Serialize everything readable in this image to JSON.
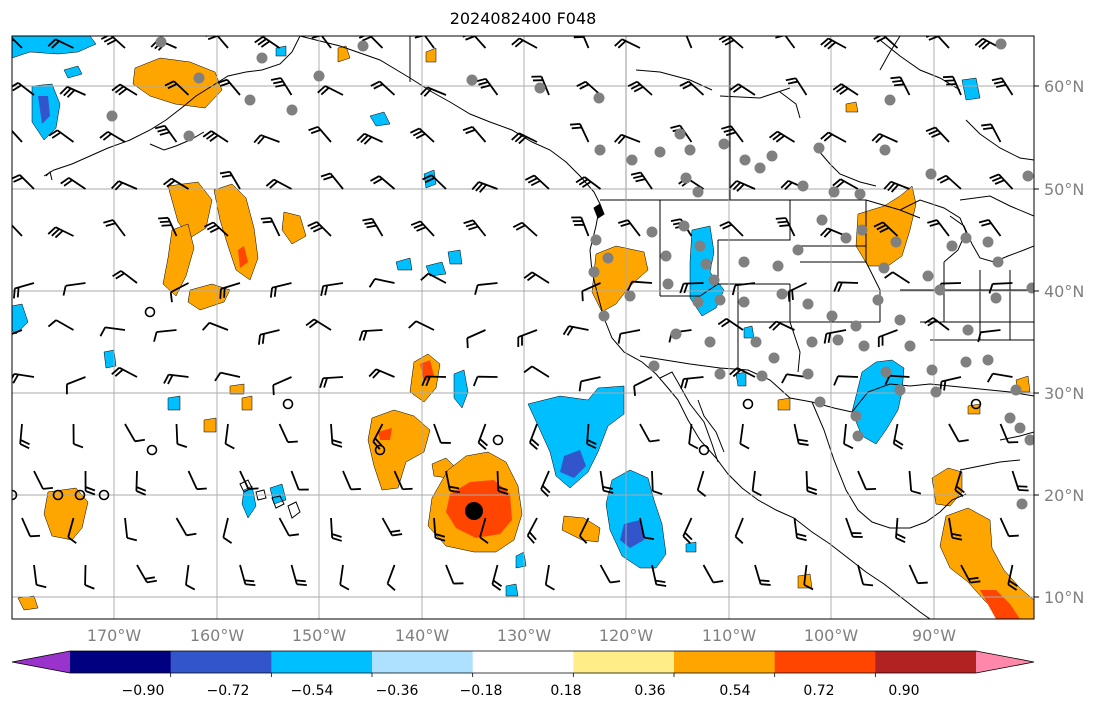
{
  "title": "2024082400 F048",
  "latitude_labels": [
    "60°N",
    "50°N",
    "40°N",
    "30°N",
    "20°N",
    "10°N"
  ],
  "longitude_labels": [
    "170°W",
    "160°W",
    "150°W",
    "140°W",
    "130°W",
    "120°W",
    "110°W",
    "100°W",
    "90°W"
  ],
  "colorbar": {
    "colors": [
      "#9933cc",
      "#000080",
      "#3355cc",
      "#00bfff",
      "#aee0ff",
      "#ffffff",
      "#ffee88",
      "#ffa500",
      "#ff4500",
      "#b22222",
      "#ff88aa"
    ],
    "tick_labels": [
      "−0.90",
      "−0.72",
      "−0.54",
      "−0.36",
      "−0.18",
      "0.18",
      "0.36",
      "0.54",
      "0.72",
      "0.90"
    ]
  },
  "colors": {
    "grid": "#aaaaaa",
    "coastline": "#000000",
    "station": "#808080",
    "positive_mid": "#ffa500",
    "positive_high": "#ff4500",
    "negative_mid": "#00bfff",
    "negative_low": "#3355cc"
  }
}
